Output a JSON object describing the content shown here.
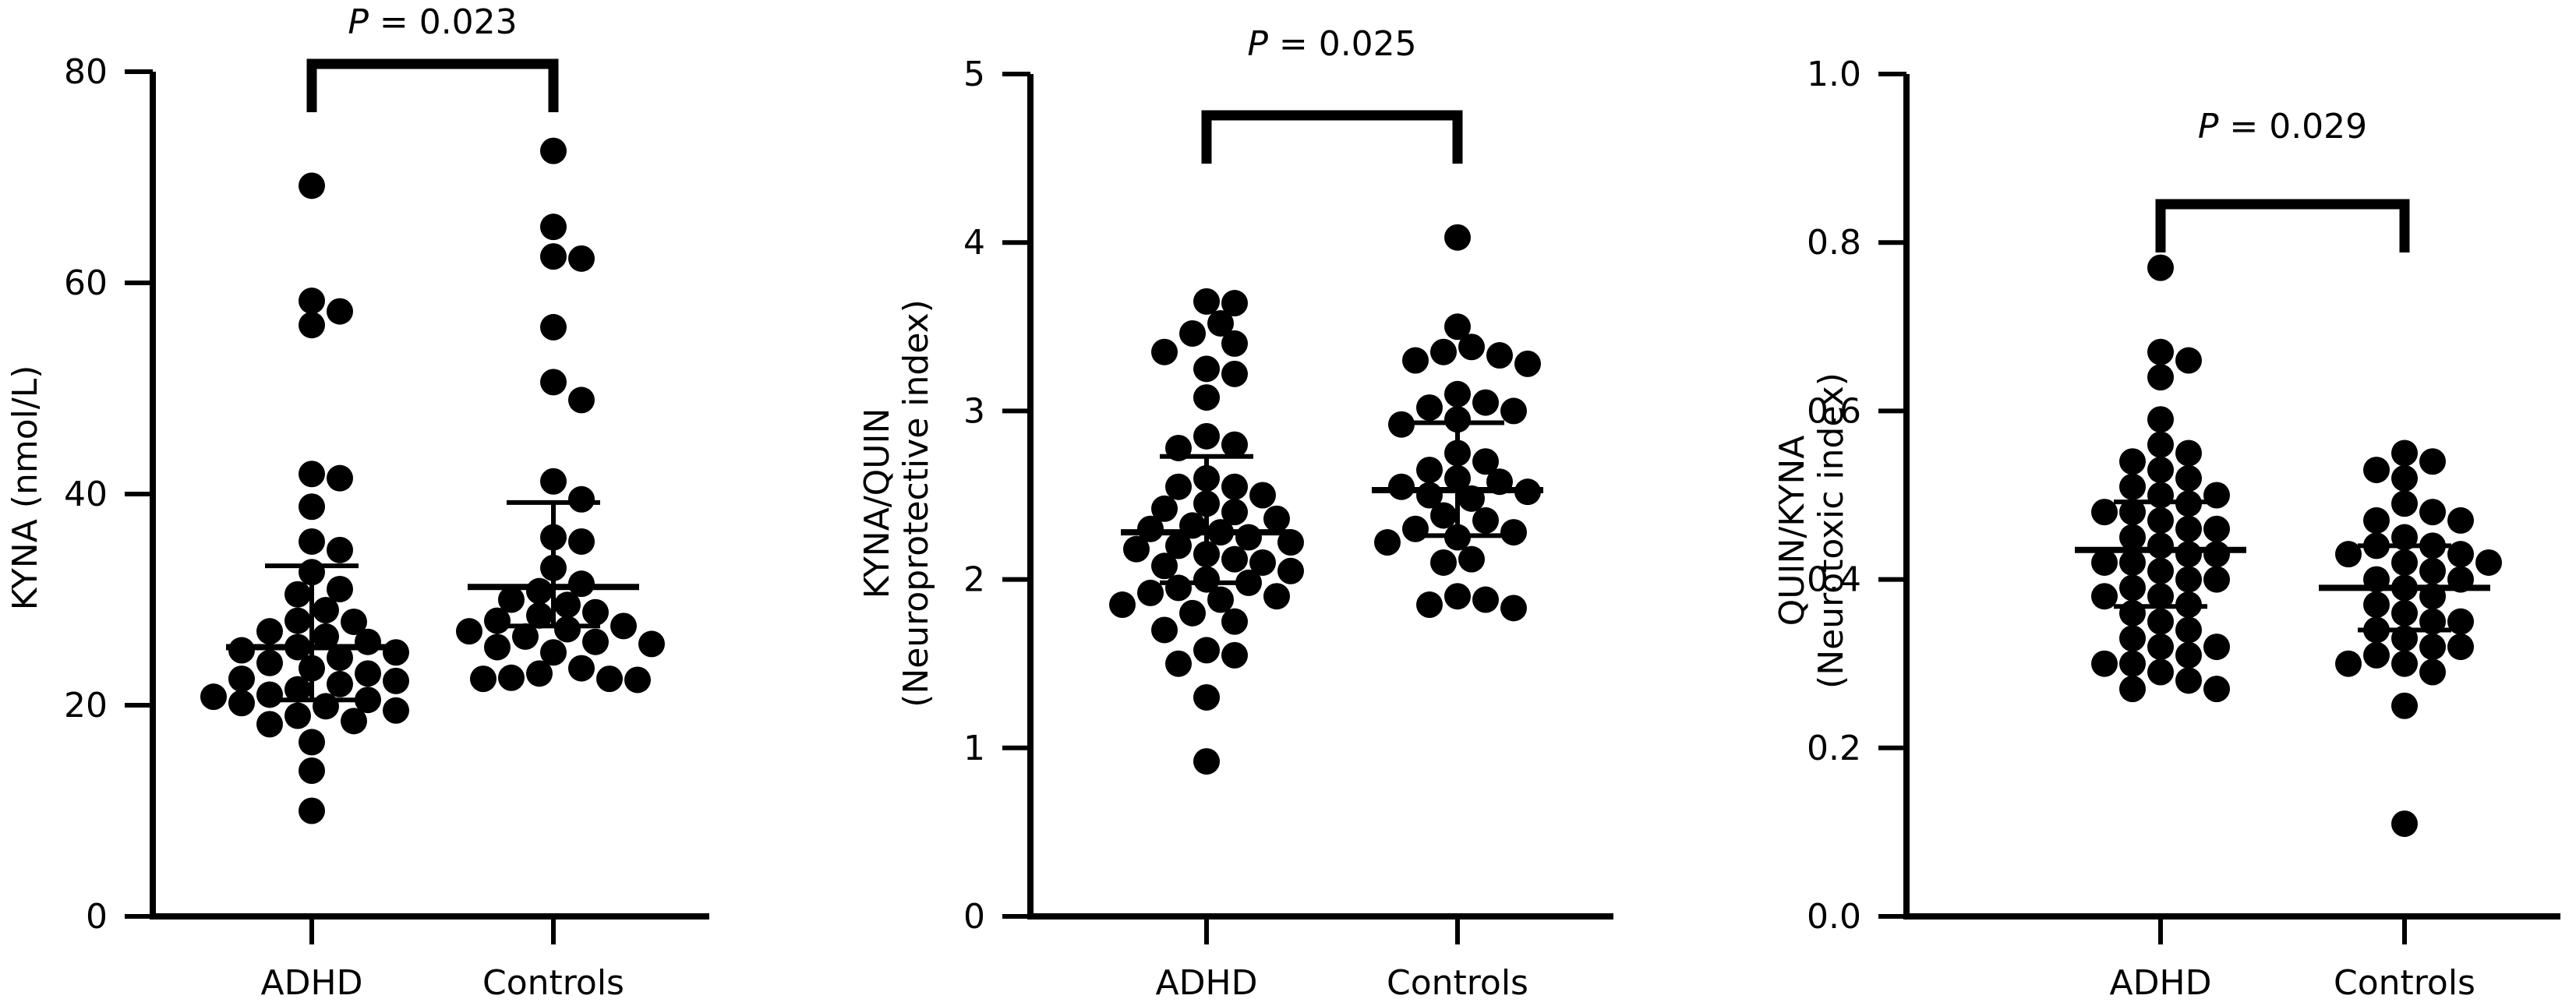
{
  "chart_data": [
    {
      "type": "scatter",
      "ylabel": [
        "KYNA (nmol/L)"
      ],
      "ylim": [
        0,
        80
      ],
      "yticks": [
        0,
        20,
        40,
        60,
        80
      ],
      "ytick_labels": [
        "0",
        "20",
        "40",
        "60",
        "80"
      ],
      "categories": [
        "ADHD",
        "Controls"
      ],
      "p_value_label": "P",
      "p_value_text": " = 0.023",
      "series": [
        {
          "category": "ADHD",
          "median": 25.5,
          "q1": 20.5,
          "q3": 33.2,
          "values": [
            69.2,
            58.3,
            57.3,
            56.0,
            41.9,
            41.5,
            38.8,
            35.5,
            34.7,
            32.6,
            31.0,
            30.5,
            29.0,
            28.0,
            27.9,
            27.0,
            26.5,
            26.0,
            25.5,
            25.0,
            25.2,
            24.5,
            24.0,
            23.5,
            23.0,
            22.5,
            22.0,
            22.3,
            21.5,
            21.0,
            20.8,
            20.5,
            20.2,
            19.9,
            19.5,
            19.0,
            18.5,
            18.2,
            16.5,
            13.8,
            10.0
          ]
        },
        {
          "category": "Controls",
          "median": 31.2,
          "q1": 27.5,
          "q3": 39.2,
          "values": [
            72.5,
            65.3,
            62.5,
            62.3,
            55.8,
            50.6,
            48.9,
            41.2,
            39.5,
            35.9,
            35.5,
            33.0,
            31.5,
            30.8,
            30.0,
            29.5,
            28.8,
            28.5,
            28.0,
            27.5,
            27.2,
            27.0,
            26.5,
            26.0,
            25.8,
            25.5,
            25.0,
            23.5,
            23.0,
            22.5,
            22.5,
            22.6,
            22.4
          ]
        }
      ]
    },
    {
      "type": "scatter",
      "ylabel": [
        "KYNA/QUIN",
        "(Neuroprotective index)"
      ],
      "ylim": [
        0,
        5
      ],
      "yticks": [
        0,
        1,
        2,
        3,
        4,
        5
      ],
      "ytick_labels": [
        "0",
        "1",
        "2",
        "3",
        "4",
        "5"
      ],
      "categories": [
        "ADHD",
        "Controls"
      ],
      "p_value_label": "P",
      "p_value_text": " = 0.025",
      "series": [
        {
          "category": "ADHD",
          "median": 2.28,
          "q1": 1.98,
          "q3": 2.73,
          "values": [
            3.65,
            3.64,
            3.52,
            3.46,
            3.4,
            3.35,
            3.25,
            3.22,
            3.08,
            2.85,
            2.8,
            2.78,
            2.6,
            2.55,
            2.55,
            2.5,
            2.45,
            2.42,
            2.4,
            2.36,
            2.32,
            2.3,
            2.28,
            2.25,
            2.22,
            2.2,
            2.18,
            2.15,
            2.12,
            2.1,
            2.08,
            2.05,
            2.0,
            1.98,
            1.95,
            1.92,
            1.9,
            1.88,
            1.85,
            1.8,
            1.75,
            1.7,
            1.58,
            1.55,
            1.5,
            1.3,
            0.92
          ]
        },
        {
          "category": "Controls",
          "median": 2.53,
          "q1": 2.26,
          "q3": 2.93,
          "values": [
            4.03,
            3.5,
            3.38,
            3.35,
            3.33,
            3.3,
            3.28,
            3.1,
            3.05,
            3.02,
            3.0,
            2.95,
            2.92,
            2.75,
            2.7,
            2.65,
            2.6,
            2.58,
            2.55,
            2.52,
            2.5,
            2.48,
            2.38,
            2.35,
            2.3,
            2.28,
            2.25,
            2.22,
            2.12,
            2.1,
            1.9,
            1.88,
            1.85,
            1.83
          ]
        }
      ]
    },
    {
      "type": "scatter",
      "ylabel": [
        "QUIN/KYNA",
        "(Neurotoxic index)"
      ],
      "ylim": [
        0,
        1
      ],
      "yticks": [
        0,
        0.2,
        0.4,
        0.6,
        0.8,
        1.0
      ],
      "ytick_labels": [
        "0.0",
        "0.2",
        "0.4",
        "0.6",
        "0.8",
        "1.0"
      ],
      "categories": [
        "ADHD",
        "Controls"
      ],
      "p_value_label": "P",
      "p_value_text": " = 0.029",
      "series": [
        {
          "category": "ADHD",
          "median": 0.435,
          "q1": 0.368,
          "q3": 0.492,
          "values": [
            0.77,
            0.67,
            0.66,
            0.64,
            0.59,
            0.56,
            0.55,
            0.54,
            0.53,
            0.52,
            0.51,
            0.5,
            0.5,
            0.49,
            0.48,
            0.48,
            0.47,
            0.46,
            0.46,
            0.45,
            0.44,
            0.43,
            0.43,
            0.42,
            0.42,
            0.41,
            0.4,
            0.4,
            0.39,
            0.38,
            0.38,
            0.37,
            0.36,
            0.35,
            0.34,
            0.33,
            0.32,
            0.32,
            0.31,
            0.3,
            0.3,
            0.29,
            0.28,
            0.27,
            0.27
          ]
        },
        {
          "category": "Controls",
          "median": 0.39,
          "q1": 0.34,
          "q3": 0.44,
          "values": [
            0.55,
            0.54,
            0.53,
            0.52,
            0.49,
            0.48,
            0.47,
            0.47,
            0.45,
            0.44,
            0.44,
            0.43,
            0.43,
            0.42,
            0.42,
            0.41,
            0.4,
            0.4,
            0.39,
            0.38,
            0.37,
            0.36,
            0.35,
            0.35,
            0.34,
            0.33,
            0.32,
            0.32,
            0.31,
            0.3,
            0.3,
            0.29,
            0.25,
            0.11
          ]
        }
      ]
    }
  ]
}
